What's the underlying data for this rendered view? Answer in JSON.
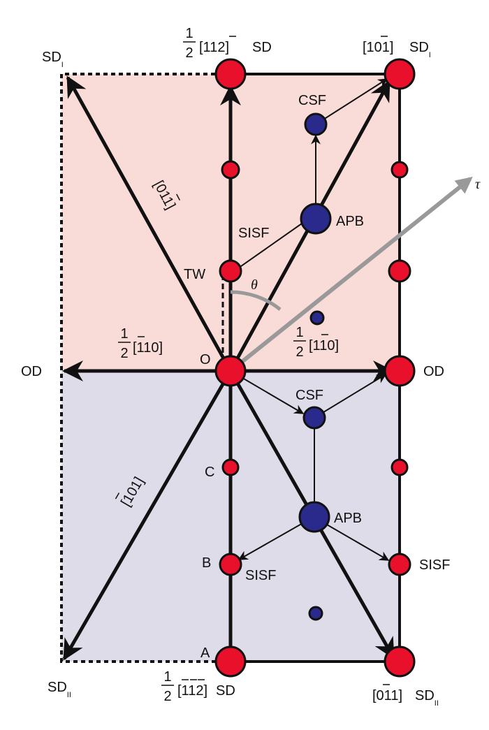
{
  "colors": {
    "upper_fill": "#f9dcd8",
    "lower_fill": "#dedce9",
    "red_atom": "#e8102a",
    "blue_atom": "#2a2a8c",
    "tau_arrow": "#999999",
    "line": "#111111"
  },
  "labels": {
    "sd_i_left": {
      "main": "SD",
      "sub": "I"
    },
    "sd_ii_left": {
      "main": "SD",
      "sub": "II"
    },
    "top_center": {
      "frac": [
        "1",
        "2"
      ],
      "vec": "[112]",
      "bar_index": 3,
      "suffix": "SD"
    },
    "top_right": {
      "vec": "[101]",
      "bar_index": 3,
      "suffix": "SD",
      "sub": "I"
    },
    "bottom_center": {
      "frac": [
        "1",
        "2"
      ],
      "vec": "[112]",
      "bar_indices": [
        1,
        2,
        3
      ],
      "suffix": "SD"
    },
    "bottom_right": {
      "vec": "[011]",
      "bar_index": 2,
      "suffix": "SD",
      "sub": "II"
    },
    "od_left": "OD",
    "od_right": "OD",
    "origin": "O",
    "tau": "τ",
    "theta": "θ",
    "left_half_vec": {
      "frac": [
        "1",
        "2"
      ],
      "vec": "[110]",
      "bar_index": 1
    },
    "blue_half_vec": {
      "frac": [
        "1",
        "2"
      ],
      "vec": "[110]",
      "bar_index": 2
    },
    "diag_upper": {
      "vec": "[011]",
      "bar_index": 3
    },
    "diag_lower": {
      "vec": "[101]",
      "bar_index": 1
    },
    "csf_top": "CSF",
    "apb_top": "APB",
    "sisf_top": "SISF",
    "tw": "TW",
    "csf_bottom": "CSF",
    "apb_bottom": "APB",
    "sisf_bottom_left": "SISF",
    "sisf_bottom_right": "SISF",
    "point_a": "A",
    "point_b": "B",
    "point_c": "C"
  }
}
